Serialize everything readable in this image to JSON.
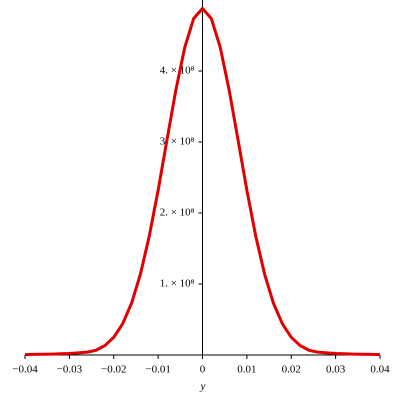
{
  "chart_data": {
    "type": "line",
    "x_label": "y",
    "color": "#e00000",
    "x": [
      -0.04,
      -0.038,
      -0.036,
      -0.034,
      -0.032,
      -0.03,
      -0.028,
      -0.026,
      -0.024,
      -0.022,
      -0.02,
      -0.018,
      -0.016,
      -0.014,
      -0.012,
      -0.01,
      -0.008,
      -0.006,
      -0.004,
      -0.002,
      0,
      0.002,
      0.004,
      0.006,
      0.008,
      0.01,
      0.012,
      0.014,
      0.016,
      0.018,
      0.02,
      0.022,
      0.024,
      0.026,
      0.028,
      0.03,
      0.032,
      0.034,
      0.036,
      0.038,
      0.04
    ],
    "values": [
      600000,
      800000,
      1000000,
      1300000,
      1700000,
      2200000,
      3000000,
      4000000,
      6700000,
      13300000,
      24900000,
      43900000,
      72700000,
      113600000,
      167300000,
      232000000,
      303200000,
      373400000,
      433200000,
      473700000,
      488000000,
      473700000,
      433200000,
      373400000,
      303200000,
      232000000,
      167300000,
      113600000,
      72700000,
      43900000,
      24900000,
      13300000,
      6700000,
      4000000,
      3000000,
      2200000,
      1700000,
      1300000,
      1000000,
      800000,
      600000
    ],
    "xlim": [
      -0.04,
      0.04
    ],
    "ylim": [
      0,
      500000000
    ],
    "xticks": [
      {
        "value": -0.04,
        "label": "−0.04"
      },
      {
        "value": -0.03,
        "label": "−0.03"
      },
      {
        "value": -0.02,
        "label": "−0.02"
      },
      {
        "value": -0.01,
        "label": "−0.01"
      },
      0,
      0.01,
      0.02,
      0.03,
      0.04
    ],
    "yticks": [
      {
        "value": 100000000,
        "label": "1. × 10⁸"
      },
      {
        "value": 200000000,
        "label": "2. × 10⁸"
      },
      {
        "value": 300000000,
        "label": "3. × 10⁸"
      },
      {
        "value": 400000000,
        "label": "4. × 10⁸"
      }
    ]
  }
}
